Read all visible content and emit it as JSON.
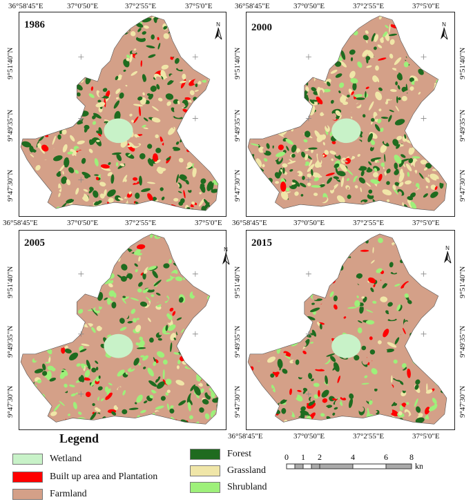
{
  "colors": {
    "wetland": "#c8f2c8",
    "builtup": "#ff0000",
    "farmland": "#d4a088",
    "forest": "#1f6b1f",
    "grassland": "#f0e6a8",
    "shrubland": "#9ef07a"
  },
  "icons": {
    "north_arrow": "north-arrow-icon",
    "grid_cross": "cross-icon"
  },
  "north_letter": "N",
  "panels": [
    {
      "year": "1986"
    },
    {
      "year": "2000"
    },
    {
      "year": "2005"
    },
    {
      "year": "2015"
    }
  ],
  "axis": {
    "top_lon": [
      "36°58'45\"E",
      "37°0'50\"E",
      "37°2'55\"E",
      "37°5'0\"E"
    ],
    "lat": [
      "9°51'40\"N",
      "9°49'35\"N",
      "9°47'30\"N"
    ]
  },
  "legend": {
    "title": "Legend",
    "items": [
      {
        "label": "Wetland",
        "color_key": "wetland"
      },
      {
        "label": "Built up area and Plantation",
        "color_key": "builtup"
      },
      {
        "label": "Farmland",
        "color_key": "farmland"
      },
      {
        "label": "Forest",
        "color_key": "forest"
      },
      {
        "label": "Grassland",
        "color_key": "grassland"
      },
      {
        "label": "Shrubland",
        "color_key": "shrubland"
      }
    ]
  },
  "scale": {
    "ticks": [
      "0",
      "1",
      "2",
      "4",
      "6",
      "8"
    ],
    "unit": "km"
  }
}
